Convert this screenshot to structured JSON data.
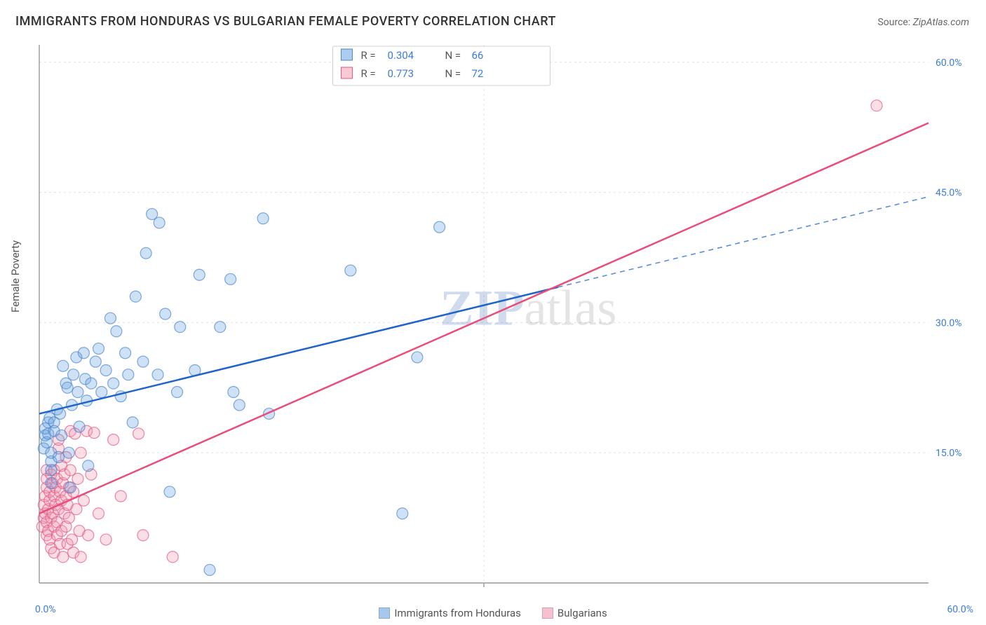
{
  "title": "IMMIGRANTS FROM HONDURAS VS BULGARIAN FEMALE POVERTY CORRELATION CHART",
  "source_label": "Source: ",
  "source_value": "ZipAtlas.com",
  "y_axis_label": "Female Poverty",
  "watermark_bold": "ZIP",
  "watermark_rest": "atlas",
  "chart": {
    "type": "scatter",
    "xlim": [
      0,
      60
    ],
    "ylim": [
      0,
      62
    ],
    "x_origin_label": "0.0%",
    "x_max_label": "60.0%",
    "y_ticks": [
      15,
      30,
      45,
      60
    ],
    "y_tick_labels": [
      "15.0%",
      "30.0%",
      "45.0%",
      "60.0%"
    ],
    "x_grid_ticks": [
      30
    ],
    "background_color": "#ffffff",
    "grid_color": "#e0e0e0",
    "axis_color": "#999999",
    "tick_text_color": "#3b7dd8",
    "marker_radius": 8,
    "marker_stroke_width": 1.2,
    "marker_fill_opacity": 0.32,
    "series": [
      {
        "key": "honduras",
        "label": "Immigrants from Honduras",
        "color": "#6aa3e0",
        "stroke": "#4a86cc",
        "trend_color": "#1f64c8",
        "trend_dash_color": "#5a8fd4",
        "R_label": "R = ",
        "R_value": "0.304",
        "N_label": "N = ",
        "N_value": "66",
        "trend": {
          "y_at_x0": 19.5,
          "y_at_x60": 44.5,
          "solid_until_x": 35
        },
        "points": [
          [
            0.3,
            15.5
          ],
          [
            0.4,
            17.0
          ],
          [
            0.4,
            17.8
          ],
          [
            0.5,
            16.2
          ],
          [
            0.6,
            17.2
          ],
          [
            0.6,
            18.5
          ],
          [
            0.7,
            19.0
          ],
          [
            0.8,
            11.5
          ],
          [
            0.8,
            13.0
          ],
          [
            0.8,
            14.0
          ],
          [
            0.8,
            15.0
          ],
          [
            1.0,
            17.5
          ],
          [
            1.0,
            18.5
          ],
          [
            1.2,
            20.0
          ],
          [
            1.3,
            14.5
          ],
          [
            1.4,
            19.5
          ],
          [
            1.5,
            17.0
          ],
          [
            1.6,
            25.0
          ],
          [
            1.8,
            23.0
          ],
          [
            1.9,
            22.5
          ],
          [
            2.0,
            15.0
          ],
          [
            2.1,
            11.0
          ],
          [
            2.2,
            20.5
          ],
          [
            2.3,
            24.0
          ],
          [
            2.5,
            26.0
          ],
          [
            2.6,
            22.0
          ],
          [
            2.7,
            18.0
          ],
          [
            3.0,
            26.5
          ],
          [
            3.1,
            23.5
          ],
          [
            3.2,
            21.0
          ],
          [
            3.3,
            13.5
          ],
          [
            3.5,
            23.0
          ],
          [
            3.8,
            25.5
          ],
          [
            4.0,
            27.0
          ],
          [
            4.2,
            22.0
          ],
          [
            4.5,
            24.5
          ],
          [
            4.8,
            30.5
          ],
          [
            5.0,
            23.0
          ],
          [
            5.2,
            29.0
          ],
          [
            5.5,
            21.5
          ],
          [
            5.8,
            26.5
          ],
          [
            6.0,
            24.0
          ],
          [
            6.3,
            18.5
          ],
          [
            6.5,
            33.0
          ],
          [
            7.0,
            25.5
          ],
          [
            7.2,
            38.0
          ],
          [
            7.6,
            42.5
          ],
          [
            8.0,
            24.0
          ],
          [
            8.1,
            41.5
          ],
          [
            8.5,
            31.0
          ],
          [
            8.8,
            10.5
          ],
          [
            9.3,
            22.0
          ],
          [
            9.5,
            29.5
          ],
          [
            10.5,
            24.5
          ],
          [
            10.8,
            35.5
          ],
          [
            11.5,
            1.5
          ],
          [
            12.2,
            29.5
          ],
          [
            12.9,
            35.0
          ],
          [
            13.1,
            22.0
          ],
          [
            13.5,
            20.5
          ],
          [
            15.1,
            42.0
          ],
          [
            15.5,
            19.5
          ],
          [
            21.0,
            36.0
          ],
          [
            24.5,
            8.0
          ],
          [
            25.5,
            26.0
          ],
          [
            27.0,
            41.0
          ]
        ]
      },
      {
        "key": "bulgarians",
        "label": "Bulgarians",
        "color": "#f19ab5",
        "stroke": "#e4567f",
        "trend_color": "#ea4d7a",
        "R_label": "R = ",
        "R_value": "0.773",
        "N_label": "N = ",
        "N_value": "72",
        "trend": {
          "y_at_x0": 8.0,
          "y_at_x60": 53.0,
          "solid_until_x": 60
        },
        "points": [
          [
            0.2,
            6.5
          ],
          [
            0.3,
            7.5
          ],
          [
            0.3,
            9.0
          ],
          [
            0.4,
            8.0
          ],
          [
            0.4,
            10.0
          ],
          [
            0.5,
            5.5
          ],
          [
            0.5,
            7.0
          ],
          [
            0.5,
            11.0
          ],
          [
            0.5,
            12.0
          ],
          [
            0.5,
            13.0
          ],
          [
            0.6,
            8.5
          ],
          [
            0.6,
            6.0
          ],
          [
            0.7,
            9.5
          ],
          [
            0.7,
            10.5
          ],
          [
            0.7,
            5.0
          ],
          [
            0.8,
            12.5
          ],
          [
            0.8,
            7.5
          ],
          [
            0.8,
            4.0
          ],
          [
            0.9,
            11.5
          ],
          [
            0.9,
            8.0
          ],
          [
            1.0,
            6.5
          ],
          [
            1.0,
            10.0
          ],
          [
            1.0,
            13.0
          ],
          [
            1.0,
            3.5
          ],
          [
            1.1,
            9.0
          ],
          [
            1.1,
            11.0
          ],
          [
            1.2,
            7.0
          ],
          [
            1.2,
            5.5
          ],
          [
            1.2,
            12.0
          ],
          [
            1.3,
            8.5
          ],
          [
            1.3,
            15.5
          ],
          [
            1.3,
            16.5
          ],
          [
            1.4,
            10.5
          ],
          [
            1.4,
            4.5
          ],
          [
            1.5,
            9.5
          ],
          [
            1.5,
            13.5
          ],
          [
            1.5,
            6.0
          ],
          [
            1.6,
            11.5
          ],
          [
            1.6,
            3.0
          ],
          [
            1.7,
            8.0
          ],
          [
            1.7,
            12.5
          ],
          [
            1.8,
            10.0
          ],
          [
            1.8,
            6.5
          ],
          [
            1.8,
            14.5
          ],
          [
            1.9,
            4.5
          ],
          [
            1.9,
            9.0
          ],
          [
            2.0,
            11.0
          ],
          [
            2.0,
            7.5
          ],
          [
            2.1,
            17.5
          ],
          [
            2.1,
            13.0
          ],
          [
            2.2,
            5.0
          ],
          [
            2.3,
            3.5
          ],
          [
            2.3,
            10.5
          ],
          [
            2.4,
            17.2
          ],
          [
            2.5,
            8.5
          ],
          [
            2.6,
            12.0
          ],
          [
            2.7,
            6.0
          ],
          [
            2.8,
            15.0
          ],
          [
            2.8,
            3.0
          ],
          [
            3.0,
            9.5
          ],
          [
            3.2,
            17.5
          ],
          [
            3.3,
            5.5
          ],
          [
            3.5,
            12.5
          ],
          [
            3.7,
            17.3
          ],
          [
            4.0,
            8.0
          ],
          [
            4.5,
            5.0
          ],
          [
            5.0,
            16.5
          ],
          [
            5.5,
            10.0
          ],
          [
            6.7,
            17.2
          ],
          [
            7.0,
            5.5
          ],
          [
            9.0,
            3.0
          ],
          [
            56.5,
            55.0
          ]
        ]
      }
    ]
  },
  "bottom_legend": [
    {
      "label": "Immigrants from Honduras",
      "color": "#a6c8ec"
    },
    {
      "label": "Bulgarians",
      "color": "#f6c0d1"
    }
  ]
}
